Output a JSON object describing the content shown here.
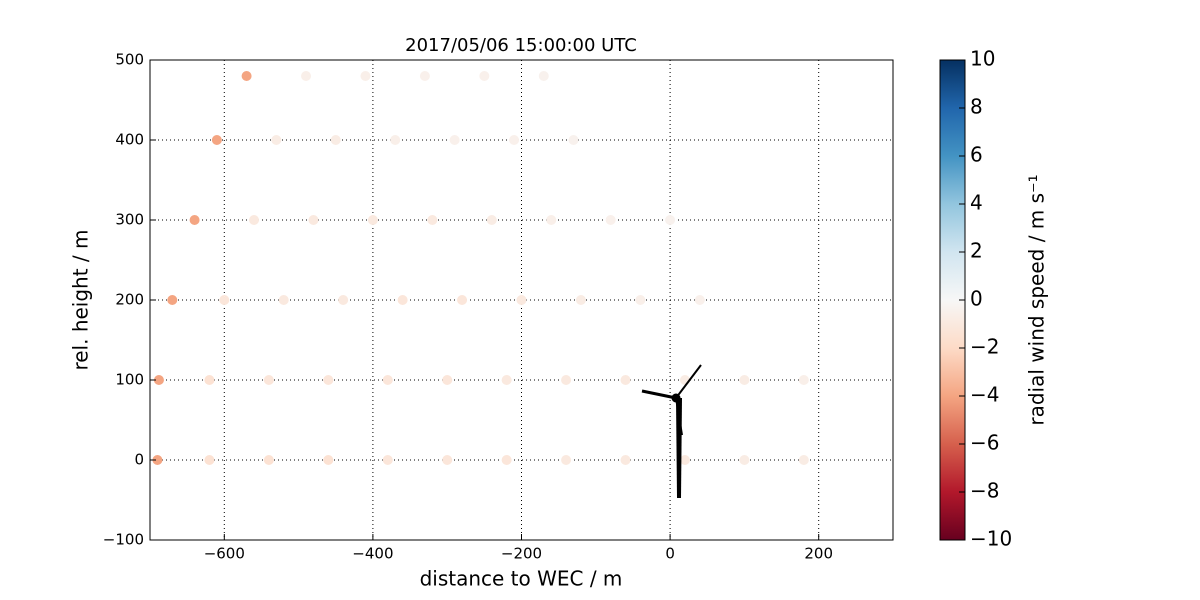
{
  "chart_data": {
    "type": "scatter",
    "title": "2017/05/06 15:00:00 UTC",
    "x_label": "distance to WEC / m",
    "y_label": "rel. height / m",
    "xlim": [
      -700,
      300
    ],
    "ylim": [
      -100,
      500
    ],
    "xticks": [
      {
        "value": -600,
        "label": "−600"
      },
      {
        "value": -400,
        "label": "−400"
      },
      {
        "value": -200,
        "label": "−200"
      },
      0,
      200
    ],
    "yticks": [
      {
        "value": -100,
        "label": "−100"
      },
      0,
      100,
      200,
      300,
      400,
      500
    ],
    "grid": true,
    "colormap": "RdBu",
    "colorbar_label": "radial wind speed / m s⁻¹",
    "clim": [
      -10,
      10
    ],
    "cticks": [
      {
        "value": -10,
        "label": "−10"
      },
      {
        "value": -8,
        "label": "−8"
      },
      {
        "value": -6,
        "label": "−6"
      },
      {
        "value": -4,
        "label": "−4"
      },
      {
        "value": -2,
        "label": "−2"
      },
      0,
      2,
      4,
      6,
      8,
      10
    ],
    "x": [
      -690,
      -620,
      -540,
      -460,
      -380,
      -300,
      -220,
      -140,
      -60,
      20,
      100,
      180,
      -688,
      -620,
      -540,
      -460,
      -380,
      -300,
      -220,
      -140,
      -60,
      20,
      100,
      180,
      -670,
      -600,
      -520,
      -440,
      -360,
      -280,
      -200,
      -120,
      -40,
      40,
      -640,
      -560,
      -480,
      -400,
      -320,
      -240,
      -160,
      -80,
      0,
      -610,
      -530,
      -450,
      -370,
      -290,
      -210,
      -130,
      -570,
      -490,
      -410,
      -330,
      -250,
      -170
    ],
    "y": [
      0,
      0,
      0,
      0,
      0,
      0,
      0,
      0,
      0,
      0,
      0,
      0,
      100,
      100,
      100,
      100,
      100,
      100,
      100,
      100,
      100,
      100,
      100,
      100,
      200,
      200,
      200,
      200,
      200,
      200,
      200,
      200,
      200,
      200,
      300,
      300,
      300,
      300,
      300,
      300,
      300,
      300,
      300,
      400,
      400,
      400,
      400,
      400,
      400,
      400,
      480,
      480,
      480,
      480,
      480,
      480
    ],
    "values": [
      -4,
      -1.5,
      -1.5,
      -1.5,
      -1.2,
      -1.2,
      -1.2,
      -1,
      -1,
      -1,
      -0.8,
      -0.8,
      -4,
      -1.5,
      -1.2,
      -1.2,
      -1.2,
      -1.2,
      -1,
      -1,
      -1,
      -0.8,
      -0.8,
      -0.6,
      -4,
      -1.2,
      -1,
      -1,
      -1.2,
      -1.2,
      -1,
      -0.8,
      -0.6,
      -0.5,
      -4,
      -1,
      -1,
      -1,
      -1,
      -0.8,
      -0.6,
      -0.5,
      -0.4,
      -4,
      -0.8,
      -0.8,
      -0.6,
      -0.5,
      -0.5,
      -0.4,
      -4,
      -0.6,
      -0.6,
      -0.5,
      -0.5,
      -0.4
    ]
  }
}
